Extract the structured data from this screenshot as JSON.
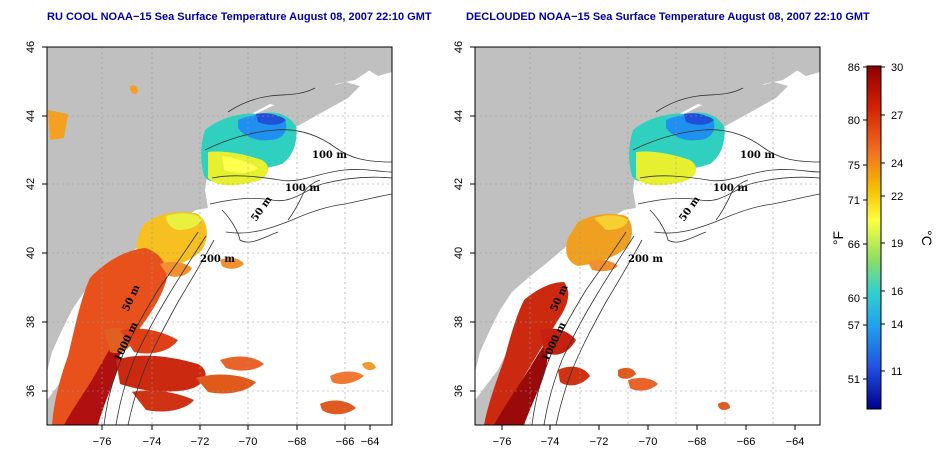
{
  "left_panel": {
    "title": "RU COOL NOAA−15 Sea Surface Temperature August 08, 2007 22:10 GMT",
    "contour_labels": [
      "100 m",
      "100 m",
      "50 m",
      "200 m",
      "50 m",
      "1000 m"
    ]
  },
  "right_panel": {
    "title": "DECLOUDED NOAA−15 Sea Surface Temperature August 08, 2007 22:10 GMT",
    "contour_labels": [
      "100 m",
      "100 m",
      "50 m",
      "200 m",
      "50 m",
      "1000 m"
    ]
  },
  "axes": {
    "x_ticks": [
      "−76",
      "−74",
      "−72",
      "−70",
      "−68",
      "−66",
      "−64"
    ],
    "y_ticks": [
      "46",
      "44",
      "42",
      "40",
      "38",
      "36"
    ]
  },
  "colorbar": {
    "fahrenheit_labels": [
      "86",
      "80",
      "75",
      "71",
      "66",
      "60",
      "57",
      "51"
    ],
    "celsius_labels": [
      "30",
      "27",
      "24",
      "22",
      "19",
      "16",
      "14",
      "11"
    ],
    "fahrenheit_unit": "°F",
    "celsius_unit": "°C",
    "range_c": [
      8.5,
      30
    ],
    "gradient_colors": [
      "#8b0000",
      "#d42000",
      "#f07020",
      "#f5c000",
      "#ffff40",
      "#90e060",
      "#30d0d0",
      "#20a0f0",
      "#2050e0",
      "#000090"
    ]
  },
  "colors": {
    "land": "#c0c0c0",
    "ocean": "#ffffff",
    "title": "#0000a8"
  }
}
